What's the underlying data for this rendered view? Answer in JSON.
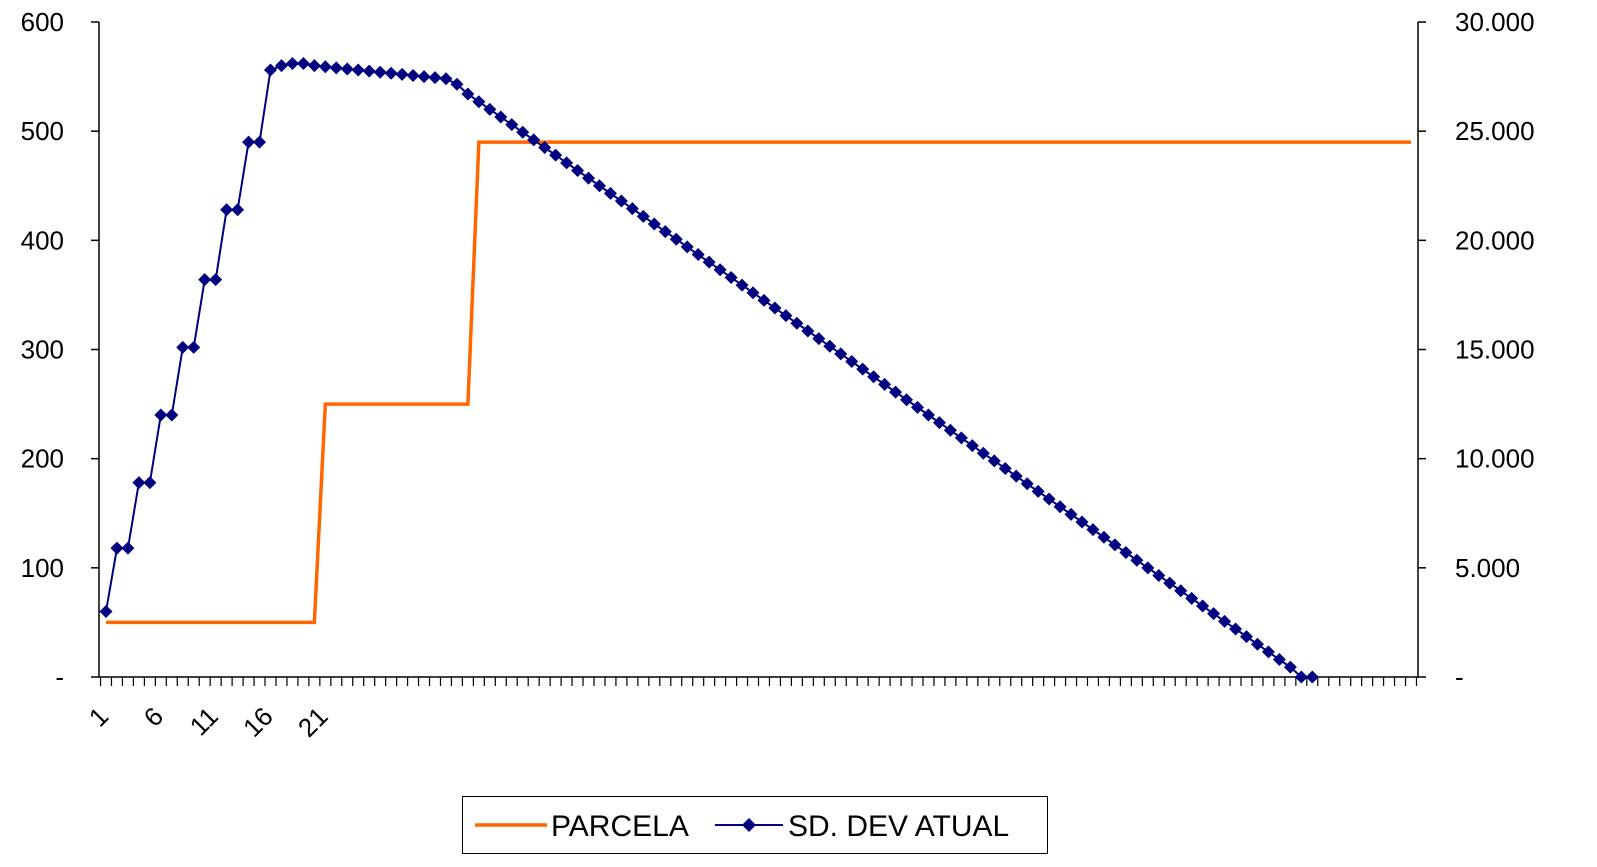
{
  "chart_data": {
    "type": "line",
    "x_tick_labels": [
      "1",
      "6",
      "11",
      "16",
      "21"
    ],
    "x_tick_values": [
      1,
      6,
      11,
      16,
      21
    ],
    "x_range": [
      1,
      120
    ],
    "left_axis": {
      "ylim": [
        0,
        600
      ],
      "ticks": [
        0,
        100,
        200,
        300,
        400,
        500,
        600
      ],
      "tick_labels": [
        "-",
        "100",
        "200",
        "300",
        "400",
        "500",
        "600"
      ]
    },
    "right_axis": {
      "ylim": [
        0,
        30000
      ],
      "ticks": [
        0,
        5000,
        10000,
        15000,
        20000,
        25000,
        30000
      ],
      "tick_labels": [
        "-",
        "5.000",
        "10.000",
        "15.000",
        "20.000",
        "25.000",
        "30.000"
      ]
    },
    "grid": false,
    "legend_position": "bottom",
    "series": [
      {
        "name": "PARCELA",
        "axis": "left",
        "color": "#FF6600",
        "marker": "none",
        "segments": [
          {
            "from": 1,
            "to": 20,
            "value": 50
          },
          {
            "from": 21,
            "to": 34,
            "value": 250
          },
          {
            "from": 35,
            "to": 120,
            "value": 490
          }
        ]
      },
      {
        "name": "SD. DEV ATUAL",
        "axis": "right",
        "color": "#000080",
        "marker": "diamond",
        "values": [
          3000,
          5900,
          5900,
          8900,
          8900,
          12000,
          12000,
          15100,
          15100,
          18200,
          18200,
          21400,
          21400,
          24500,
          24500,
          27800,
          28000,
          28100,
          28100,
          28000,
          27950,
          27900,
          27850,
          27800,
          27750,
          27700,
          27650,
          27600,
          27550,
          27500,
          27450,
          27400,
          27150,
          26700,
          26350,
          26000,
          25650,
          25300,
          24950,
          24600,
          24250,
          23900,
          23550,
          23200,
          22850,
          22500,
          22150,
          21800,
          21450,
          21100,
          20750,
          20400,
          20050,
          19700,
          19350,
          19000,
          18650,
          18300,
          17950,
          17600,
          17250,
          16900,
          16550,
          16200,
          15850,
          15500,
          15150,
          14800,
          14450,
          14100,
          13750,
          13400,
          13050,
          12700,
          12350,
          12000,
          11650,
          11300,
          10950,
          10600,
          10250,
          9900,
          9550,
          9200,
          8850,
          8500,
          8150,
          7800,
          7450,
          7100,
          6750,
          6400,
          6050,
          5700,
          5350,
          5000,
          4650,
          4300,
          3950,
          3600,
          3250,
          2900,
          2550,
          2200,
          1850,
          1500,
          1150,
          800,
          450,
          0,
          0
        ]
      }
    ]
  }
}
